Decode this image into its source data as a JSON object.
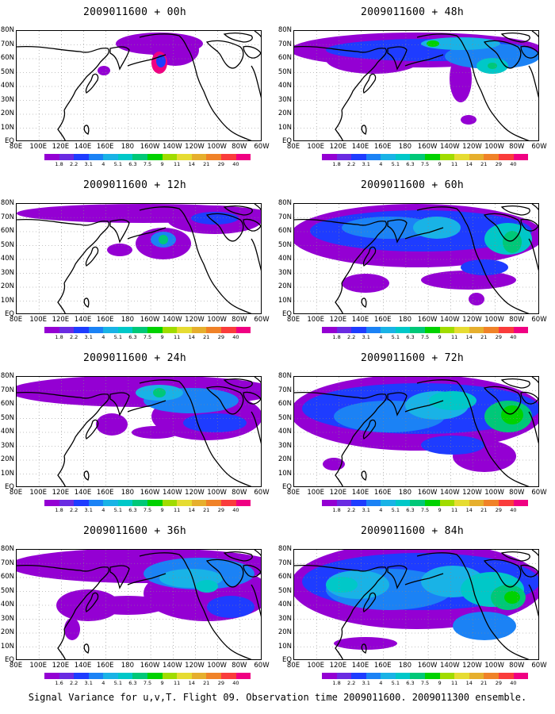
{
  "figure": {
    "caption": "Signal Variance for u,v,T. Flight 09. Observation time 2009011600. 2009011300 ensemble."
  },
  "axes": {
    "lat_labels": [
      "80N",
      "70N",
      "60N",
      "50N",
      "40N",
      "30N",
      "20N",
      "10N",
      "EQ"
    ],
    "lon_labels": [
      "80E",
      "100E",
      "120E",
      "140E",
      "160E",
      "180",
      "160W",
      "140W",
      "120W",
      "100W",
      "80W",
      "60W"
    ]
  },
  "colorbar": {
    "labels": [
      "1.8",
      "2.2",
      "3.1",
      "4",
      "5.1",
      "6.3",
      "7.5",
      "9",
      "11",
      "14",
      "21",
      "29",
      "40"
    ],
    "bottom_left_first_label": "1.6",
    "colors": [
      "#9400d3",
      "#6a2be2",
      "#1e3cff",
      "#1b82f5",
      "#19b3e6",
      "#00c8c8",
      "#00c878",
      "#00d200",
      "#a0dc00",
      "#e6dc32",
      "#e6af2d",
      "#f08228",
      "#fa3c3c",
      "#f00082"
    ]
  },
  "chart_data": [
    {
      "type": "heatmap",
      "title": "2009011600 + 00h",
      "lead_hours": 0,
      "ylim": [
        "EQ",
        "80N"
      ],
      "xlim": [
        "80E",
        "60W"
      ]
    },
    {
      "type": "heatmap",
      "title": "2009011600 + 12h",
      "lead_hours": 12,
      "ylim": [
        "EQ",
        "80N"
      ],
      "xlim": [
        "80E",
        "60W"
      ]
    },
    {
      "type": "heatmap",
      "title": "2009011600 + 24h",
      "lead_hours": 24,
      "ylim": [
        "EQ",
        "80N"
      ],
      "xlim": [
        "80E",
        "60W"
      ]
    },
    {
      "type": "heatmap",
      "title": "2009011600 + 36h",
      "lead_hours": 36,
      "ylim": [
        "EQ",
        "80N"
      ],
      "xlim": [
        "80E",
        "60W"
      ]
    },
    {
      "type": "heatmap",
      "title": "2009011600 + 48h",
      "lead_hours": 48,
      "ylim": [
        "EQ",
        "80N"
      ],
      "xlim": [
        "80E",
        "60W"
      ]
    },
    {
      "type": "heatmap",
      "title": "2009011600 + 60h",
      "lead_hours": 60,
      "ylim": [
        "EQ",
        "80N"
      ],
      "xlim": [
        "80E",
        "60W"
      ]
    },
    {
      "type": "heatmap",
      "title": "2009011600 + 72h",
      "lead_hours": 72,
      "ylim": [
        "EQ",
        "80N"
      ],
      "xlim": [
        "80E",
        "60W"
      ]
    },
    {
      "type": "heatmap",
      "title": "2009011600 + 84h",
      "lead_hours": 84,
      "ylim": [
        "EQ",
        "80N"
      ],
      "xlim": [
        "80E",
        "60W"
      ]
    }
  ]
}
